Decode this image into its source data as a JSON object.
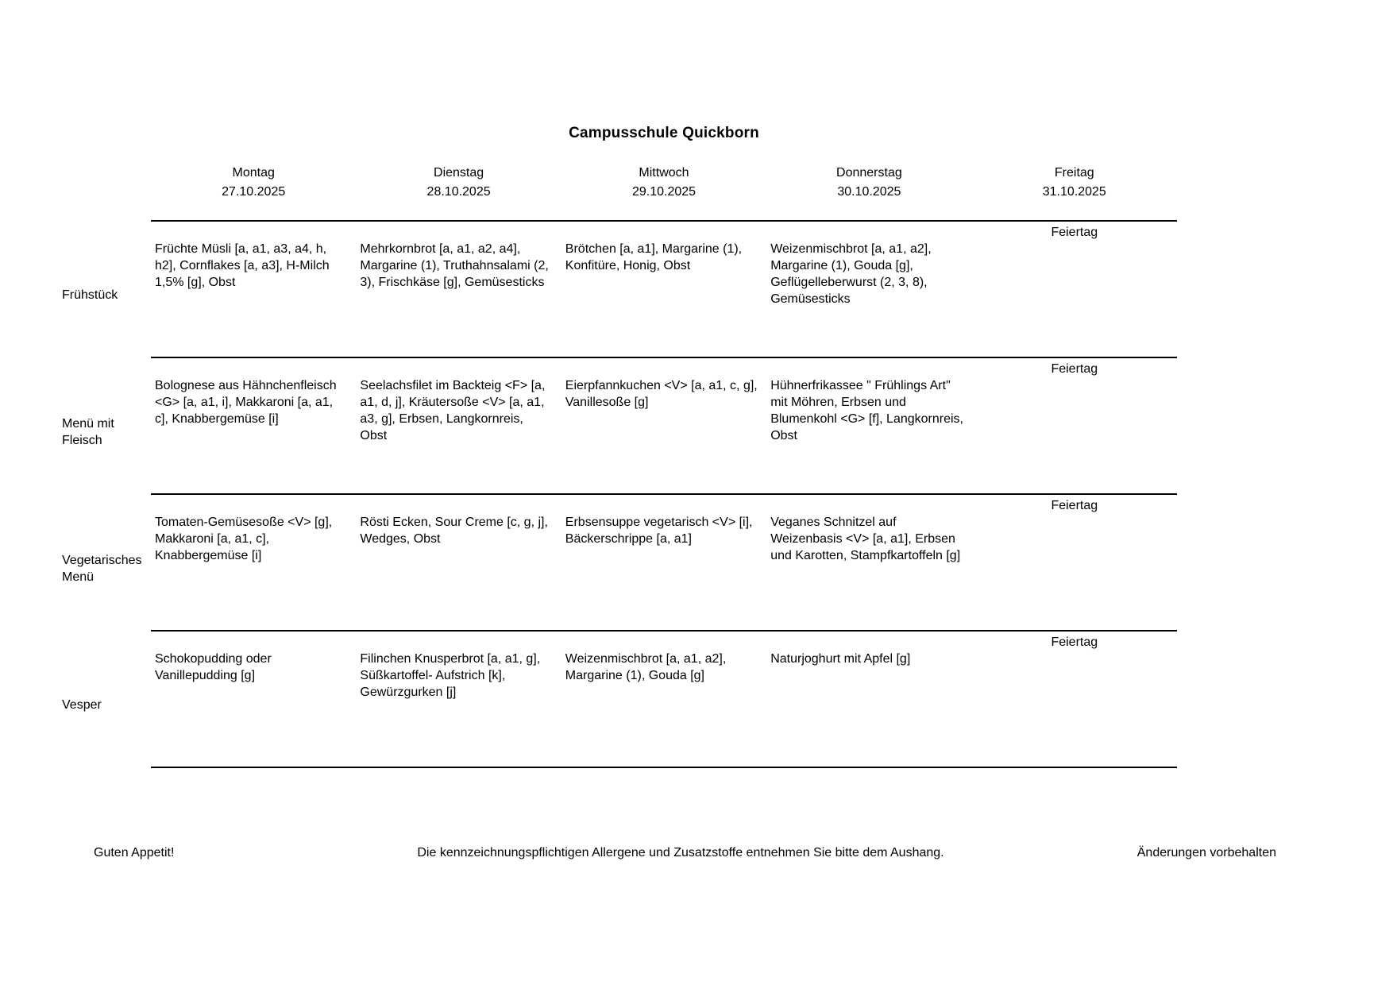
{
  "title": "Campusschule Quickborn",
  "week": {
    "days": [
      {
        "name": "Montag",
        "date": "27.10.2025"
      },
      {
        "name": "Dienstag",
        "date": "28.10.2025"
      },
      {
        "name": "Mittwoch",
        "date": "29.10.2025"
      },
      {
        "name": "Donnerstag",
        "date": "30.10.2025"
      },
      {
        "name": "Freitag",
        "date": "31.10.2025"
      }
    ]
  },
  "menu": {
    "rows": [
      {
        "label": "Frühstück",
        "cells": [
          "Früchte Müsli [a, a1, a3, a4, h, h2], Cornflakes [a, a3], H-Milch 1,5% [g], Obst",
          "Mehrkornbrot [a, a1, a2, a4], Margarine (1), Truthahnsalami (2, 3), Frischkäse [g], Gemüsesticks",
          "Brötchen [a, a1], Margarine (1), Konfitüre, Honig, Obst",
          "Weizenmischbrot [a, a1, a2], Margarine (1), Gouda [g], Geflügelleberwurst (2, 3, 8), Gemüsesticks",
          "Feiertag"
        ]
      },
      {
        "label": "Menü mit Fleisch",
        "cells": [
          "Bolognese aus Hähnchenfleisch <G> [a, a1, i], Makkaroni [a, a1, c], Knabbergemüse [i]",
          "Seelachsfilet im Backteig <F> [a, a1, d, j], Kräutersoße <V> [a, a1, a3, g], Erbsen, Langkornreis, Obst",
          "Eierpfannkuchen <V> [a, a1, c, g], Vanillesoße [g]",
          "Hühnerfrikassee \" Frühlings Art\" mit Möhren, Erbsen und Blumenkohl <G> [f], Langkornreis, Obst",
          "Feiertag"
        ]
      },
      {
        "label": "Vegetarisches Menü",
        "cells": [
          "Tomaten-Gemüsesoße <V> [g], Makkaroni [a, a1, c], Knabbergemüse [i]",
          "Rösti Ecken, Sour Creme [c, g, j], Wedges, Obst",
          "Erbsensuppe vegetarisch <V> [i], Bäckerschrippe [a, a1]",
          "Veganes Schnitzel auf Weizenbasis <V> [a, a1], Erbsen und Karotten, Stampfkartoffeln [g]",
          "Feiertag"
        ]
      },
      {
        "label": "Vesper",
        "cells": [
          "Schokopudding oder Vanillepudding [g]",
          "Filinchen Knusperbrot [a, a1, g], Süßkartoffel- Aufstrich [k], Gewürzgurken [j]",
          "Weizenmischbrot [a, a1, a2], Margarine (1), Gouda [g]",
          "Naturjoghurt mit Apfel [g]",
          "Feiertag"
        ]
      }
    ]
  },
  "footer": {
    "left": "Guten Appetit!",
    "center": "Die kennzeichnungspflichtigen Allergene und Zusatzstoffe entnehmen Sie bitte dem Aushang.",
    "right": "Änderungen vorbehalten"
  }
}
